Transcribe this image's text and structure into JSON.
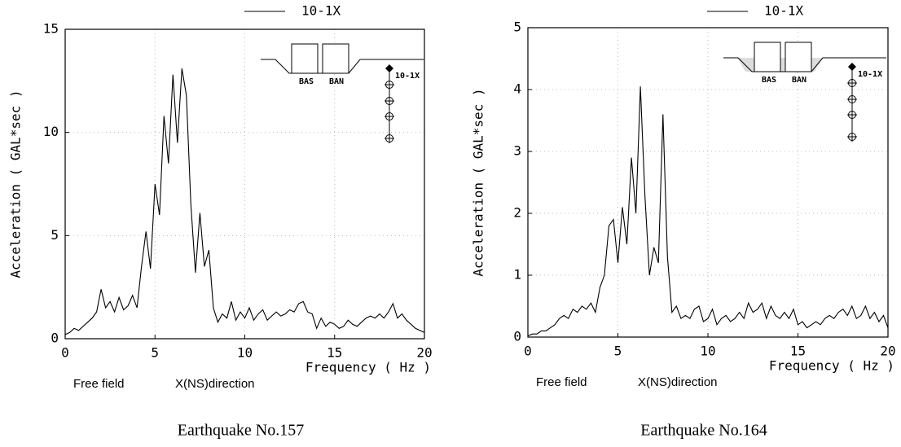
{
  "chart_data": [
    {
      "type": "line",
      "y_label": "Acceleration ( GAL*sec )",
      "x_label": "Frequency ( Hz )",
      "location": "Free field",
      "direction": "X(NS)direction",
      "caption": "Earthquake No.157",
      "inset_labels": [
        "BAS",
        "BAN",
        "10-1X"
      ],
      "xlim": [
        0,
        20
      ],
      "xticks": [
        0,
        5,
        10,
        15,
        20
      ],
      "ylim": [
        0,
        15
      ],
      "yticks": [
        0,
        5,
        10,
        15
      ],
      "grid": true,
      "x": [
        0,
        0.25,
        0.5,
        0.75,
        1,
        1.25,
        1.5,
        1.75,
        2,
        2.25,
        2.5,
        2.75,
        3,
        3.25,
        3.5,
        3.75,
        4,
        4.25,
        4.5,
        4.75,
        5,
        5.25,
        5.5,
        5.75,
        6,
        6.25,
        6.5,
        6.75,
        7,
        7.25,
        7.5,
        7.75,
        8,
        8.25,
        8.5,
        8.75,
        9,
        9.25,
        9.5,
        9.75,
        10,
        10.25,
        10.5,
        10.75,
        11,
        11.25,
        11.5,
        11.75,
        12,
        12.25,
        12.5,
        12.75,
        13,
        13.25,
        13.5,
        13.75,
        14,
        14.25,
        14.5,
        14.75,
        15,
        15.25,
        15.5,
        15.75,
        16,
        16.25,
        16.5,
        16.75,
        17,
        17.25,
        17.5,
        17.75,
        18,
        18.25,
        18.5,
        18.75,
        19,
        19.25,
        19.5,
        19.75,
        20
      ],
      "series": [
        {
          "name": "10-1X",
          "color": "#000000",
          "values": [
            0.2,
            0.3,
            0.5,
            0.4,
            0.6,
            0.8,
            1.0,
            1.3,
            2.4,
            1.5,
            1.8,
            1.3,
            2.0,
            1.4,
            1.6,
            2.1,
            1.5,
            3.5,
            5.2,
            3.4,
            7.5,
            6.0,
            10.8,
            8.5,
            12.8,
            9.5,
            13.1,
            11.8,
            6.5,
            3.2,
            6.1,
            3.5,
            4.3,
            1.5,
            0.8,
            1.2,
            1.0,
            1.8,
            0.9,
            1.3,
            1.0,
            1.5,
            0.9,
            1.2,
            1.4,
            0.9,
            1.1,
            1.3,
            1.1,
            1.2,
            1.4,
            1.3,
            1.7,
            1.8,
            1.3,
            1.2,
            0.5,
            1.0,
            0.6,
            0.8,
            0.7,
            0.5,
            0.6,
            0.9,
            0.7,
            0.6,
            0.8,
            1.0,
            1.1,
            1.0,
            1.2,
            1.0,
            1.3,
            1.7,
            1.0,
            1.2,
            0.9,
            0.7,
            0.5,
            0.4,
            0.3
          ]
        }
      ]
    },
    {
      "type": "line",
      "y_label": "Acceleration ( GAL*sec )",
      "x_label": "Frequency ( Hz )",
      "location": "Free field",
      "direction": "X(NS)direction",
      "caption": "Earthquake No.164",
      "inset_labels": [
        "BAS",
        "BAN",
        "10-1X"
      ],
      "xlim": [
        0,
        20
      ],
      "xticks": [
        0,
        5,
        10,
        15,
        20
      ],
      "ylim": [
        0,
        5
      ],
      "yticks": [
        0,
        1,
        2,
        3,
        4,
        5
      ],
      "grid": true,
      "x": [
        0,
        0.25,
        0.5,
        0.75,
        1,
        1.25,
        1.5,
        1.75,
        2,
        2.25,
        2.5,
        2.75,
        3,
        3.25,
        3.5,
        3.75,
        4,
        4.25,
        4.5,
        4.75,
        5,
        5.25,
        5.5,
        5.75,
        6,
        6.25,
        6.5,
        6.75,
        7,
        7.25,
        7.5,
        7.75,
        8,
        8.25,
        8.5,
        8.75,
        9,
        9.25,
        9.5,
        9.75,
        10,
        10.25,
        10.5,
        10.75,
        11,
        11.25,
        11.5,
        11.75,
        12,
        12.25,
        12.5,
        12.75,
        13,
        13.25,
        13.5,
        13.75,
        14,
        14.25,
        14.5,
        14.75,
        15,
        15.25,
        15.5,
        15.75,
        16,
        16.25,
        16.5,
        16.75,
        17,
        17.25,
        17.5,
        17.75,
        18,
        18.25,
        18.5,
        18.75,
        19,
        19.25,
        19.5,
        19.75,
        20
      ],
      "series": [
        {
          "name": "10-1X",
          "color": "#000000",
          "values": [
            0.02,
            0.05,
            0.05,
            0.1,
            0.1,
            0.15,
            0.2,
            0.3,
            0.35,
            0.3,
            0.45,
            0.4,
            0.5,
            0.45,
            0.55,
            0.4,
            0.8,
            1.0,
            1.8,
            1.9,
            1.2,
            2.1,
            1.5,
            2.9,
            2.0,
            4.05,
            2.3,
            1.0,
            1.45,
            1.2,
            3.6,
            1.3,
            0.4,
            0.5,
            0.3,
            0.35,
            0.3,
            0.45,
            0.5,
            0.25,
            0.3,
            0.45,
            0.2,
            0.3,
            0.35,
            0.25,
            0.3,
            0.4,
            0.3,
            0.55,
            0.4,
            0.45,
            0.55,
            0.3,
            0.5,
            0.35,
            0.3,
            0.4,
            0.3,
            0.45,
            0.2,
            0.25,
            0.15,
            0.2,
            0.25,
            0.2,
            0.3,
            0.35,
            0.3,
            0.4,
            0.45,
            0.35,
            0.5,
            0.3,
            0.35,
            0.5,
            0.3,
            0.4,
            0.25,
            0.35,
            0.15
          ]
        }
      ]
    }
  ]
}
